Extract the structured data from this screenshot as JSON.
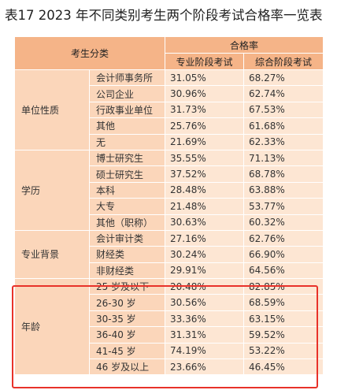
{
  "title": "表17 2023 年不同类别考生两个阶段考试合格率一览表",
  "header": {
    "category": "考生分类",
    "pass_rate": "合格率",
    "professional": "专业阶段考试",
    "comprehensive": "综合阶段考试"
  },
  "groups": [
    {
      "name": "单位性质",
      "rows": [
        {
          "sub": "会计师事务所",
          "professional": "31.05%",
          "comprehensive": "68.27%"
        },
        {
          "sub": "公司企业",
          "professional": "30.96%",
          "comprehensive": "62.74%"
        },
        {
          "sub": "行政事业单位",
          "professional": "31.73%",
          "comprehensive": "67.53%"
        },
        {
          "sub": "其他",
          "professional": "25.76%",
          "comprehensive": "61.68%"
        },
        {
          "sub": "无",
          "professional": "21.69%",
          "comprehensive": "62.33%"
        }
      ]
    },
    {
      "name": "学历",
      "rows": [
        {
          "sub": "博士研究生",
          "professional": "35.55%",
          "comprehensive": "71.13%"
        },
        {
          "sub": "硕士研究生",
          "professional": "37.52%",
          "comprehensive": "68.78%"
        },
        {
          "sub": "本科",
          "professional": "28.48%",
          "comprehensive": "63.88%"
        },
        {
          "sub": "大专",
          "professional": "21.48%",
          "comprehensive": "53.77%"
        },
        {
          "sub": "其他（职称）",
          "professional": "30.63%",
          "comprehensive": "60.32%"
        }
      ]
    },
    {
      "name": "专业背景",
      "rows": [
        {
          "sub": "会计审计类",
          "professional": "27.16%",
          "comprehensive": "62.76%"
        },
        {
          "sub": "财经类",
          "professional": "30.24%",
          "comprehensive": "66.90%"
        },
        {
          "sub": "非财经类",
          "professional": "29.91%",
          "comprehensive": "64.56%"
        }
      ]
    },
    {
      "name": "年龄",
      "rows": [
        {
          "sub": "25 岁及以下",
          "professional": "20.48%",
          "comprehensive": "82.85%"
        },
        {
          "sub": "26-30 岁",
          "professional": "30.56%",
          "comprehensive": "68.59%"
        },
        {
          "sub": "30-35 岁",
          "professional": "33.36%",
          "comprehensive": "63.15%"
        },
        {
          "sub": "36-40 岁",
          "professional": "31.31%",
          "comprehensive": "59.52%"
        },
        {
          "sub": "41-45 岁",
          "professional": "74.19%",
          "comprehensive": "53.22%"
        },
        {
          "sub": "46 岁及以上",
          "professional": "23.66%",
          "comprehensive": "46.45%"
        }
      ]
    }
  ],
  "highlight_color": "#e8322a",
  "header_color": "#f5b488",
  "cell_color": "#fde6d3"
}
